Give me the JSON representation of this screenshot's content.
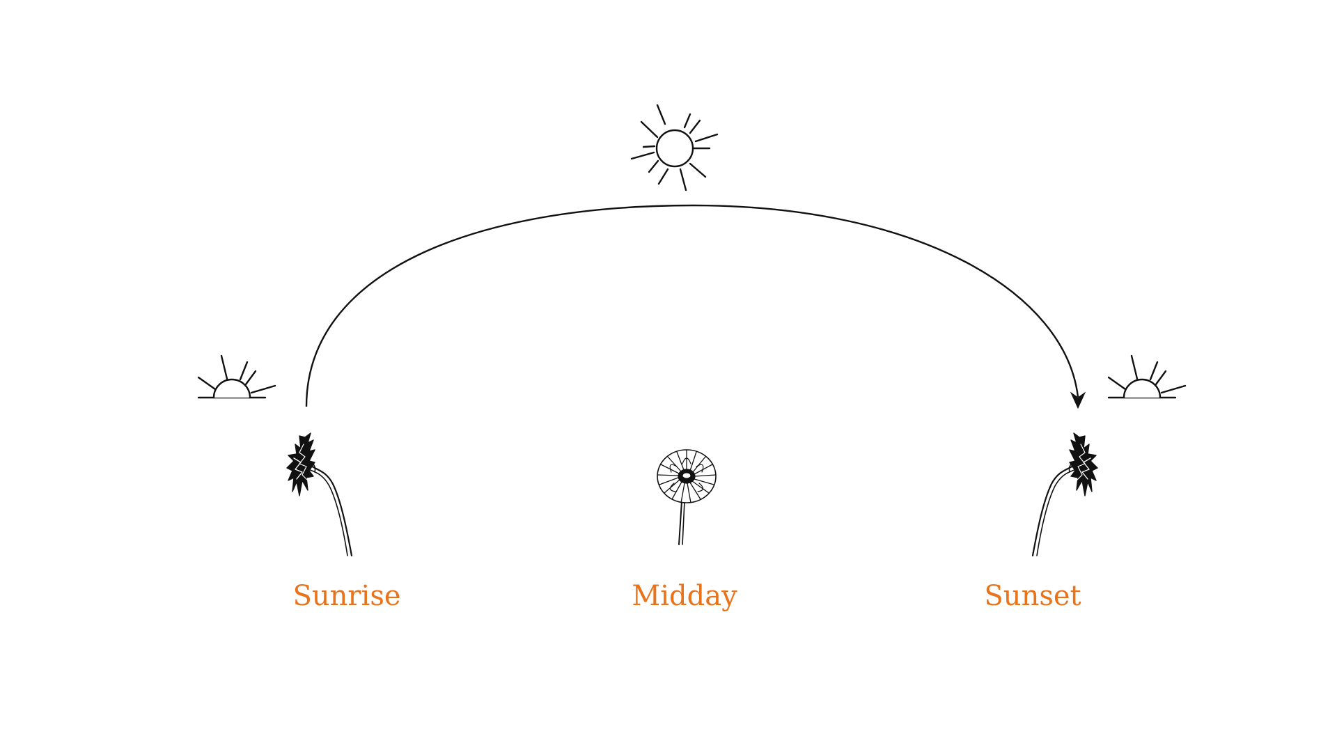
{
  "labels": {
    "sunrise": "Sunrise",
    "midday": "Midday",
    "sunset": "Sunset"
  },
  "colors": {
    "label": "#E8731A",
    "line": "#111111",
    "background": "#FFFFFF"
  },
  "icons": {
    "sunrise_sun": "half-sun-horizon-icon",
    "midday_sun": "full-sun-icon",
    "sunset_sun": "half-sun-horizon-icon",
    "path": "arc-arrow-icon",
    "sunrise_flower": "flower-facing-left-icon",
    "midday_flower": "flower-facing-up-icon",
    "sunset_flower": "flower-facing-right-icon"
  }
}
